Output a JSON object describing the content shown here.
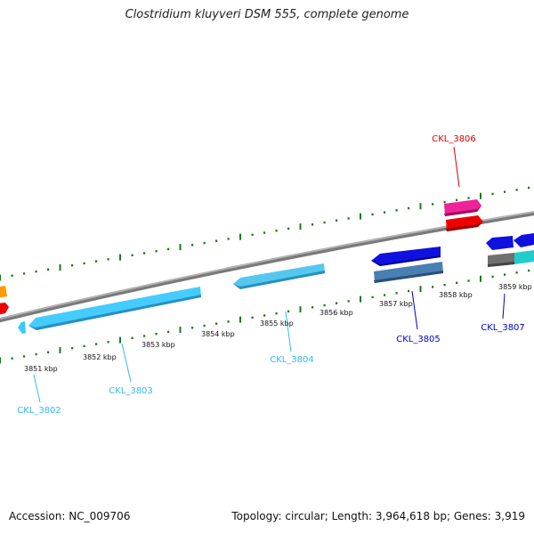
{
  "title": "Clostridium kluyveri DSM 555, complete genome",
  "footer": {
    "accession": "Accession: NC_009706",
    "summary": "Topology: circular; Length: 3,964,618 bp; Genes: 3,919"
  },
  "scale": {
    "ticks": [
      "3851 kbp",
      "3852 kbp",
      "3853 kbp",
      "3854 kbp",
      "3855 kbp",
      "3856 kbp",
      "3857 kbp",
      "3858 kbp",
      "3859 kbp"
    ]
  },
  "genes": [
    {
      "label": "",
      "strand": "+",
      "start_kbp": 3849.6,
      "end_kbp": 3850.2,
      "color": "#ff9900"
    },
    {
      "label": "",
      "strand": "+",
      "start_kbp": 3849.6,
      "end_kbp": 3850.2,
      "color": "#ff0000"
    },
    {
      "label": "CKL_3802",
      "strand": "-",
      "start_kbp": 3850.78,
      "end_kbp": 3850.86,
      "color": "#33ccff"
    },
    {
      "label": "CKL_3803",
      "strand": "-",
      "start_kbp": 3850.9,
      "end_kbp": 3853.75,
      "color": "#33ccff"
    },
    {
      "label": "CKL_3804",
      "strand": "-",
      "start_kbp": 3854.25,
      "end_kbp": 3855.9,
      "color": "#33ccff"
    },
    {
      "label": "CKL_3805",
      "strand": "-",
      "start_kbp": 3856.75,
      "end_kbp": 3857.97,
      "color": "#0000ee"
    },
    {
      "label": "",
      "strand": "-",
      "start_kbp": 3856.75,
      "end_kbp": 3857.97,
      "color": "#4477aa"
    },
    {
      "label": "CKL_3806",
      "strand": "+",
      "start_kbp": 3858.08,
      "end_kbp": 3858.73,
      "color": "#ee1199"
    },
    {
      "label": "",
      "strand": "+",
      "start_kbp": 3858.08,
      "end_kbp": 3858.73,
      "color": "#ee0000"
    },
    {
      "label": "",
      "strand": "-",
      "start_kbp": 3859.1,
      "end_kbp": 3859.6,
      "color": "#0000ee"
    },
    {
      "label": "CKL_3807",
      "strand": "-",
      "start_kbp": 3859.1,
      "end_kbp": 3859.6,
      "color": "#666666"
    },
    {
      "label": "",
      "strand": "-",
      "start_kbp": 3859.6,
      "end_kbp": 3860.6,
      "color": "#0000ee"
    },
    {
      "label": "",
      "strand": "-",
      "start_kbp": 3859.6,
      "end_kbp": 3860.6,
      "color": "#22cccc"
    }
  ]
}
